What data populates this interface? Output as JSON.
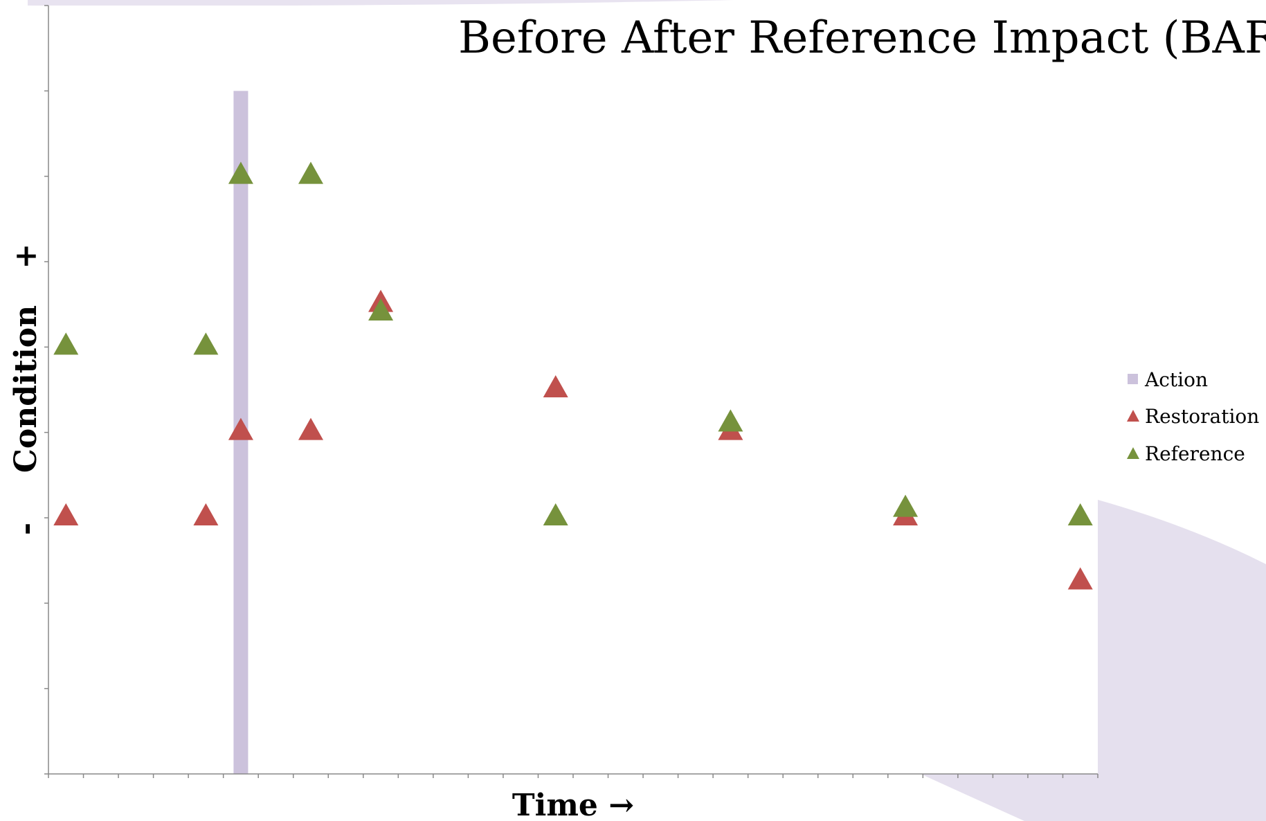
{
  "chart_data": {
    "type": "scatter",
    "title": "Before After Reference Impact (BARI)",
    "xlabel": "Time →",
    "ylabel": "Condition",
    "y_tick_labels": {
      "minus": "-",
      "plus": "+"
    },
    "xlim": [
      0,
      30
    ],
    "ylim": [
      0,
      9
    ],
    "action": {
      "name": "Action",
      "x": 5.5,
      "color": "#ccc2dc"
    },
    "series": [
      {
        "name": "Restoration",
        "color": "#c0504d",
        "points": [
          {
            "x": 0.5,
            "y": 3
          },
          {
            "x": 4.5,
            "y": 3
          },
          {
            "x": 5.5,
            "y": 4
          },
          {
            "x": 7.5,
            "y": 4
          },
          {
            "x": 9.5,
            "y": 5.5
          },
          {
            "x": 14.5,
            "y": 4.5
          },
          {
            "x": 19.5,
            "y": 4
          },
          {
            "x": 24.5,
            "y": 3
          },
          {
            "x": 29.5,
            "y": 2.25
          }
        ]
      },
      {
        "name": "Reference",
        "color": "#76923c",
        "points": [
          {
            "x": 0.5,
            "y": 5
          },
          {
            "x": 4.5,
            "y": 5
          },
          {
            "x": 5.5,
            "y": 7
          },
          {
            "x": 7.5,
            "y": 7
          },
          {
            "x": 9.5,
            "y": 5.4
          },
          {
            "x": 14.5,
            "y": 3
          },
          {
            "x": 19.5,
            "y": 4.1
          },
          {
            "x": 24.5,
            "y": 3.1
          },
          {
            "x": 29.5,
            "y": 3
          }
        ]
      }
    ],
    "legend": {
      "placement": "right",
      "entries": [
        {
          "name": "Action",
          "marker": "square",
          "color": "#ccc2dc"
        },
        {
          "name": "Restoration",
          "marker": "triangle",
          "color": "#c0504d"
        },
        {
          "name": "Reference",
          "marker": "triangle",
          "color": "#76923c"
        }
      ]
    },
    "grid": false
  },
  "colors": {
    "decor": "#e5e0ee",
    "axis": "#888888"
  }
}
